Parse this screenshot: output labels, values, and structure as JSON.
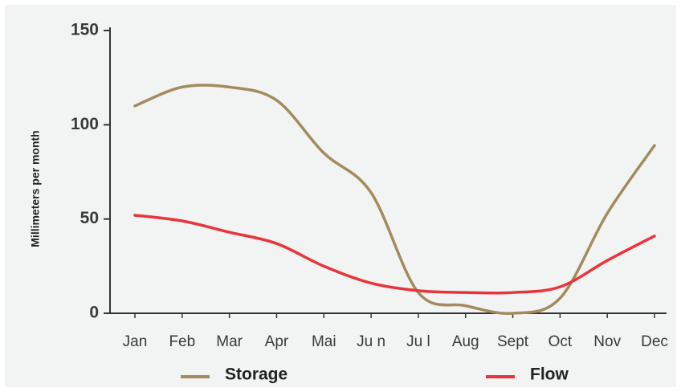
{
  "chart_data": {
    "type": "line",
    "y_label": "Millimeters per month",
    "categories": [
      "Jan",
      "Feb",
      "Mar",
      "Apr",
      "Mai",
      "Ju n",
      "Ju l",
      "Aug",
      "Sept",
      "Oct",
      "Nov",
      "Dec"
    ],
    "series": [
      {
        "name": "Storage",
        "color": "#a38b5e",
        "values": [
          110,
          120,
          120,
          113,
          85,
          64,
          11,
          4,
          0,
          8,
          53,
          89
        ]
      },
      {
        "name": "Flow",
        "color": "#e8343b",
        "values": [
          52,
          49,
          43,
          37,
          25,
          16,
          12,
          11,
          11,
          14,
          28,
          41
        ]
      }
    ],
    "ylim": [
      0,
      150
    ],
    "yticks": [
      0,
      50,
      100,
      150
    ]
  }
}
